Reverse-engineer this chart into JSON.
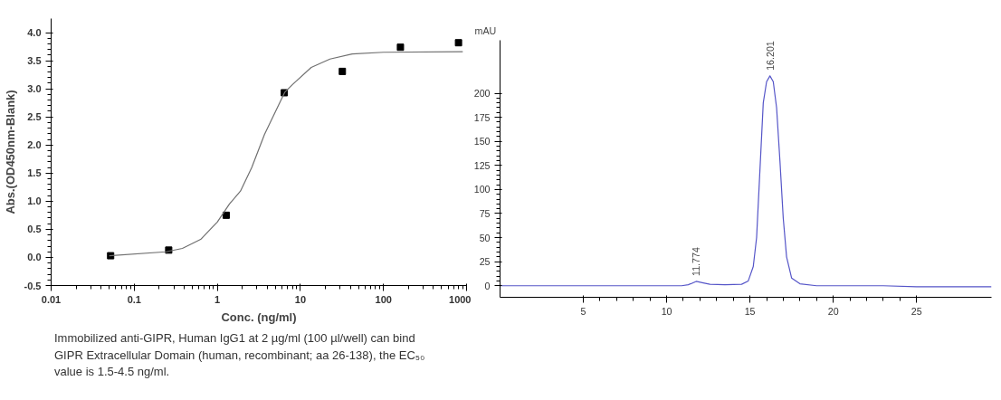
{
  "chart_data": [
    {
      "type": "scatter",
      "xlabel": "Conc. (ng/ml)",
      "ylabel": "Abs.(OD450nm-Blank)",
      "log": "x",
      "grid": false,
      "xlim": [
        0.01,
        1000
      ],
      "xticks": [
        0.01,
        0.1,
        1,
        10,
        100,
        1000
      ],
      "ylim": [
        -0.5,
        4.25
      ],
      "yticks": [
        {
          "value": -0.5,
          "label": "-0.5"
        },
        {
          "value": 0,
          "label": "0.0"
        },
        {
          "value": 0.5,
          "label": "0.5"
        },
        {
          "value": 1,
          "label": "1.0"
        },
        {
          "value": 1.5,
          "label": "1.5"
        },
        {
          "value": 2,
          "label": "2.0"
        },
        {
          "value": 2.5,
          "label": "2.5"
        },
        {
          "value": 3,
          "label": "3.0"
        },
        {
          "value": 3.5,
          "label": "3.5"
        },
        {
          "value": 4,
          "label": "4.0"
        }
      ],
      "series": [
        {
          "type": "scatter",
          "marker": "square",
          "color": "#000000",
          "x": [
            0.052,
            0.26,
            1.28,
            6.4,
            32,
            160,
            800
          ],
          "values": [
            0.03,
            0.13,
            0.75,
            2.93,
            3.31,
            3.74,
            3.82
          ]
        },
        {
          "type": "line",
          "marker": "none",
          "color": "#707070",
          "x": [
            0.05,
            0.24,
            0.38,
            0.63,
            1.0,
            1.4,
            1.9,
            2.6,
            3.7,
            5.0,
            6.5,
            8.1,
            13.5,
            22.7,
            42,
            100,
            900
          ],
          "values": [
            0.03,
            0.1,
            0.16,
            0.32,
            0.63,
            0.95,
            1.18,
            1.6,
            2.19,
            2.59,
            2.94,
            3.08,
            3.38,
            3.53,
            3.62,
            3.65,
            3.66
          ]
        }
      ],
      "annotations": [
        "Immobilized anti-GIPR, Human IgG1 at 2 µg/ml (100 µl/well) can bind GIPR Extracellular Domain (human, recombinant; aa 26-138), the EC₅₀ value is 1.5-4.5 ng/ml."
      ]
    },
    {
      "type": "line",
      "ylabel": "mAU",
      "grid": false,
      "xlim": [
        0,
        29.5
      ],
      "xticks": [
        5,
        10,
        15,
        20,
        25
      ],
      "ylim": [
        -12,
        255
      ],
      "yticks": [
        0,
        25,
        50,
        75,
        100,
        125,
        150,
        175,
        200
      ],
      "series": [
        {
          "color": "#5555c8",
          "x": [
            0,
            5,
            8,
            10,
            10.9,
            11.3,
            11.774,
            12.2,
            12.6,
            13.5,
            14.5,
            14.9,
            15.2,
            15.4,
            15.6,
            15.8,
            16.0,
            16.201,
            16.4,
            16.6,
            16.8,
            17.0,
            17.2,
            17.5,
            18,
            19,
            23,
            25,
            29.5
          ],
          "values": [
            0,
            0,
            0,
            0,
            0,
            1,
            4.5,
            3,
            1.5,
            1,
            1.5,
            5,
            20,
            50,
            120,
            190,
            212,
            218,
            212,
            185,
            130,
            70,
            30,
            8,
            2,
            0,
            0,
            -1,
            -1
          ]
        }
      ],
      "annotations": [
        {
          "text": "11.774",
          "x": 11.774,
          "y": 4.5
        },
        {
          "text": "16.201",
          "x": 16.201,
          "y": 218
        }
      ]
    }
  ]
}
